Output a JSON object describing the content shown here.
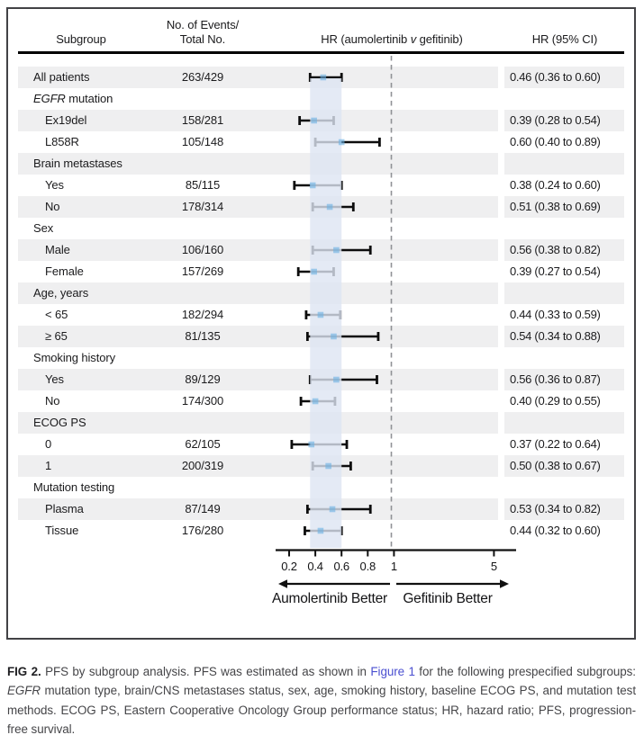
{
  "header": {
    "col_subgroup": "Subgroup",
    "col_events_line1": "No. of Events/",
    "col_events_line2": "Total No.",
    "col_plot_pre": "HR (aumolertinib ",
    "col_plot_italic": "v",
    "col_plot_post": " gefitinib)",
    "col_hr": "HR (95% CI)"
  },
  "chart_data": {
    "type": "forest",
    "title": "PFS by subgroup analysis",
    "x_axis": {
      "ticks": [
        0.2,
        0.4,
        0.6,
        0.8,
        1,
        5
      ],
      "tick_labels": [
        "0.2",
        "0.4",
        "0.6",
        "0.8",
        "1",
        "5"
      ],
      "xlim": [
        0.2,
        5
      ],
      "reference_line": 1,
      "shaded_band": [
        0.36,
        0.6
      ],
      "scale_note": "linear 0.2-1, compressed 1-5"
    },
    "arrows": {
      "left_label": "Aumolertinib Better",
      "right_label": "Gefitinib Better"
    },
    "colors": {
      "band": "rgba(221,229,243,0.8)",
      "bar": "#0d0d0d",
      "marker": "rgba(106,176,227,0.6)",
      "stripe": "#efeff0",
      "reference_dash": "#909296"
    },
    "rows": [
      {
        "group": false,
        "indent": 0,
        "shaded": true,
        "label": "All patients",
        "events": "263/429",
        "hr": 0.46,
        "ci_low": 0.36,
        "ci_high": 0.6,
        "hr_ci": "0.46 (0.36 to 0.60)"
      },
      {
        "group": true,
        "indent": 0,
        "shaded": false,
        "label_italic": "EGFR",
        "label": " mutation"
      },
      {
        "group": false,
        "indent": 1,
        "shaded": true,
        "label": "Ex19del",
        "events": "158/281",
        "hr": 0.39,
        "ci_low": 0.28,
        "ci_high": 0.54,
        "hr_ci": "0.39 (0.28 to 0.54)"
      },
      {
        "group": false,
        "indent": 1,
        "shaded": false,
        "label": "L858R",
        "events": "105/148",
        "hr": 0.6,
        "ci_low": 0.4,
        "ci_high": 0.89,
        "hr_ci": "0.60 (0.40 to 0.89)"
      },
      {
        "group": true,
        "indent": 0,
        "shaded": true,
        "label": "Brain metastases"
      },
      {
        "group": false,
        "indent": 1,
        "shaded": false,
        "label": "Yes",
        "events": "85/115",
        "hr": 0.38,
        "ci_low": 0.24,
        "ci_high": 0.6,
        "hr_ci": "0.38 (0.24 to 0.60)"
      },
      {
        "group": false,
        "indent": 1,
        "shaded": true,
        "label": "No",
        "events": "178/314",
        "hr": 0.51,
        "ci_low": 0.38,
        "ci_high": 0.69,
        "hr_ci": "0.51 (0.38 to 0.69)"
      },
      {
        "group": true,
        "indent": 0,
        "shaded": false,
        "label": "Sex"
      },
      {
        "group": false,
        "indent": 1,
        "shaded": true,
        "label": "Male",
        "events": "106/160",
        "hr": 0.56,
        "ci_low": 0.38,
        "ci_high": 0.82,
        "hr_ci": "0.56 (0.38 to 0.82)"
      },
      {
        "group": false,
        "indent": 1,
        "shaded": false,
        "label": "Female",
        "events": "157/269",
        "hr": 0.39,
        "ci_low": 0.27,
        "ci_high": 0.54,
        "hr_ci": "0.39 (0.27 to 0.54)"
      },
      {
        "group": true,
        "indent": 0,
        "shaded": true,
        "label": "Age, years"
      },
      {
        "group": false,
        "indent": 1,
        "shaded": false,
        "label": "< 65",
        "events": "182/294",
        "hr": 0.44,
        "ci_low": 0.33,
        "ci_high": 0.59,
        "hr_ci": "0.44 (0.33 to 0.59)"
      },
      {
        "group": false,
        "indent": 1,
        "shaded": true,
        "label": "≥ 65",
        "events": "81/135",
        "hr": 0.54,
        "ci_low": 0.34,
        "ci_high": 0.88,
        "hr_ci": "0.54 (0.34 to 0.88)"
      },
      {
        "group": true,
        "indent": 0,
        "shaded": false,
        "label": "Smoking history"
      },
      {
        "group": false,
        "indent": 1,
        "shaded": true,
        "label": "Yes",
        "events": "89/129",
        "hr": 0.56,
        "ci_low": 0.36,
        "ci_high": 0.87,
        "hr_ci": "0.56 (0.36 to 0.87)"
      },
      {
        "group": false,
        "indent": 1,
        "shaded": false,
        "label": "No",
        "events": "174/300",
        "hr": 0.4,
        "ci_low": 0.29,
        "ci_high": 0.55,
        "hr_ci": "0.40 (0.29 to 0.55)"
      },
      {
        "group": true,
        "indent": 0,
        "shaded": true,
        "label": "ECOG PS"
      },
      {
        "group": false,
        "indent": 1,
        "shaded": false,
        "label": "0",
        "events": "62/105",
        "hr": 0.37,
        "ci_low": 0.22,
        "ci_high": 0.64,
        "hr_ci": "0.37 (0.22 to 0.64)"
      },
      {
        "group": false,
        "indent": 1,
        "shaded": true,
        "label": "1",
        "events": "200/319",
        "hr": 0.5,
        "ci_low": 0.38,
        "ci_high": 0.67,
        "hr_ci": "0.50 (0.38 to 0.67)"
      },
      {
        "group": true,
        "indent": 0,
        "shaded": false,
        "label": "Mutation testing"
      },
      {
        "group": false,
        "indent": 1,
        "shaded": true,
        "label": "Plasma",
        "events": "87/149",
        "hr": 0.53,
        "ci_low": 0.34,
        "ci_high": 0.82,
        "hr_ci": "0.53 (0.34 to 0.82)"
      },
      {
        "group": false,
        "indent": 1,
        "shaded": false,
        "label": "Tissue",
        "events": "176/280",
        "hr": 0.44,
        "ci_low": 0.32,
        "ci_high": 0.6,
        "hr_ci": "0.44 (0.32 to 0.60)"
      }
    ]
  },
  "caption": {
    "segments": [
      {
        "text": "FIG 2. ",
        "style": "bold"
      },
      {
        "text": "PFS by subgroup analysis. PFS was estimated as shown in ",
        "style": "plain"
      },
      {
        "text": "Figure 1",
        "style": "link"
      },
      {
        "text": " for the following prespecified subgroups: ",
        "style": "plain"
      },
      {
        "text": "EGFR",
        "style": "italic"
      },
      {
        "text": " mutation type, brain/CNS metastases status, sex, age, smoking history, baseline ECOG PS, and mutation test methods. ECOG PS, Eastern Cooperative Oncology Group performance status; HR, hazard ratio; PFS, progression-free survival.",
        "style": "plain"
      }
    ]
  }
}
